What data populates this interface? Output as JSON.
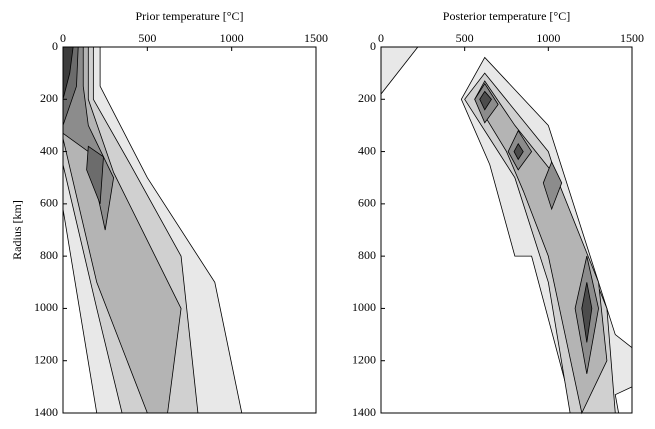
{
  "chart_data": [
    {
      "type": "contour",
      "title": "Prior temperature [°C]",
      "ylabel": "Radius [km]",
      "xlim": [
        0,
        1500
      ],
      "ylim": [
        0,
        1400
      ],
      "y_inverted": true,
      "xticks": [
        0,
        500,
        1000,
        1500
      ],
      "yticks": [
        0,
        200,
        400,
        600,
        800,
        1000,
        1200,
        1400
      ],
      "contours": [
        {
          "color": "#e8e8e8",
          "points": [
            [
              0,
              0
            ],
            [
              220,
              0
            ],
            [
              220,
              150
            ],
            [
              500,
              500
            ],
            [
              900,
              900
            ],
            [
              1060,
              1400
            ],
            [
              200,
              1400
            ],
            [
              0,
              620
            ]
          ]
        },
        {
          "color": "#d0d0d0",
          "points": [
            [
              0,
              0
            ],
            [
              180,
              0
            ],
            [
              180,
              200
            ],
            [
              400,
              450
            ],
            [
              700,
              800
            ],
            [
              800,
              1400
            ],
            [
              350,
              1400
            ],
            [
              200,
              1000
            ],
            [
              0,
              450
            ]
          ]
        },
        {
          "color": "#b4b4b4",
          "points": [
            [
              0,
              0
            ],
            [
              150,
              0
            ],
            [
              150,
              200
            ],
            [
              300,
              480
            ],
            [
              700,
              1000
            ],
            [
              620,
              1400
            ],
            [
              500,
              1400
            ],
            [
              200,
              900
            ],
            [
              0,
              350
            ]
          ]
        },
        {
          "color": "#8c8c8c",
          "points": [
            [
              0,
              0
            ],
            [
              120,
              0
            ],
            [
              120,
              150
            ],
            [
              150,
              300
            ],
            [
              300,
              500
            ],
            [
              250,
              700
            ],
            [
              150,
              400
            ],
            [
              0,
              330
            ]
          ]
        },
        {
          "color": "#6c6c6c",
          "points": [
            [
              150,
              380
            ],
            [
              240,
              420
            ],
            [
              220,
              600
            ],
            [
              140,
              470
            ]
          ]
        },
        {
          "color": "#6c6c6c",
          "points": [
            [
              0,
              0
            ],
            [
              90,
              0
            ],
            [
              80,
              150
            ],
            [
              0,
              300
            ]
          ]
        },
        {
          "color": "#3c3c3c",
          "points": [
            [
              0,
              0
            ],
            [
              60,
              0
            ],
            [
              40,
              100
            ],
            [
              0,
              200
            ]
          ]
        }
      ]
    },
    {
      "type": "contour",
      "title": "Posterior temperature [°C]",
      "xlim": [
        0,
        1500
      ],
      "ylim": [
        0,
        1400
      ],
      "y_inverted": true,
      "xticks": [
        0,
        500,
        1000,
        1500
      ],
      "yticks": [
        0,
        200,
        400,
        600,
        800,
        1000,
        1200,
        1400
      ],
      "contours": [
        {
          "color": "#e8e8e8",
          "points": [
            [
              0,
              0
            ],
            [
              220,
              0
            ],
            [
              0,
              180
            ]
          ]
        },
        {
          "color": "#e8e8e8",
          "points": [
            [
              480,
              200
            ],
            [
              620,
              40
            ],
            [
              1000,
              300
            ],
            [
              1200,
              700
            ],
            [
              1400,
              1100
            ],
            [
              1500,
              1150
            ],
            [
              1500,
              1300
            ],
            [
              1400,
              1330
            ],
            [
              1420,
              1400
            ],
            [
              1150,
              1400
            ],
            [
              900,
              800
            ],
            [
              800,
              800
            ],
            [
              650,
              450
            ]
          ]
        },
        {
          "color": "#d0d0d0",
          "points": [
            [
              620,
              100
            ],
            [
              1000,
              400
            ],
            [
              1100,
              600
            ],
            [
              1350,
              1000
            ],
            [
              1400,
              1400
            ],
            [
              1130,
              1400
            ],
            [
              1000,
              900
            ],
            [
              900,
              700
            ],
            [
              800,
              500
            ],
            [
              650,
              350
            ],
            [
              500,
              200
            ]
          ]
        },
        {
          "color": "#b4b4b4",
          "points": [
            [
              620,
              130
            ],
            [
              800,
              300
            ],
            [
              1050,
              500
            ],
            [
              1300,
              900
            ],
            [
              1350,
              1200
            ],
            [
              1200,
              1400
            ],
            [
              1100,
              1100
            ],
            [
              1000,
              800
            ],
            [
              850,
              550
            ],
            [
              750,
              400
            ],
            [
              560,
              200
            ]
          ]
        },
        {
          "color": "#8c8c8c",
          "points": [
            [
              620,
              140
            ],
            [
              700,
              220
            ],
            [
              620,
              290
            ],
            [
              560,
              200
            ]
          ]
        },
        {
          "color": "#8c8c8c",
          "points": [
            [
              820,
              320
            ],
            [
              900,
              400
            ],
            [
              820,
              470
            ],
            [
              760,
              400
            ]
          ]
        },
        {
          "color": "#8c8c8c",
          "points": [
            [
              1020,
              440
            ],
            [
              1080,
              520
            ],
            [
              1020,
              620
            ],
            [
              970,
              520
            ]
          ]
        },
        {
          "color": "#8c8c8c",
          "points": [
            [
              1230,
              800
            ],
            [
              1300,
              1000
            ],
            [
              1230,
              1250
            ],
            [
              1160,
              1000
            ]
          ]
        },
        {
          "color": "#4c4c4c",
          "points": [
            [
              620,
              170
            ],
            [
              660,
              200
            ],
            [
              620,
              240
            ],
            [
              590,
              200
            ]
          ]
        },
        {
          "color": "#4c4c4c",
          "points": [
            [
              820,
              370
            ],
            [
              850,
              400
            ],
            [
              820,
              430
            ],
            [
              795,
              400
            ]
          ]
        },
        {
          "color": "#4c4c4c",
          "points": [
            [
              1230,
              900
            ],
            [
              1260,
              1000
            ],
            [
              1230,
              1130
            ],
            [
              1200,
              1000
            ]
          ]
        }
      ]
    }
  ]
}
